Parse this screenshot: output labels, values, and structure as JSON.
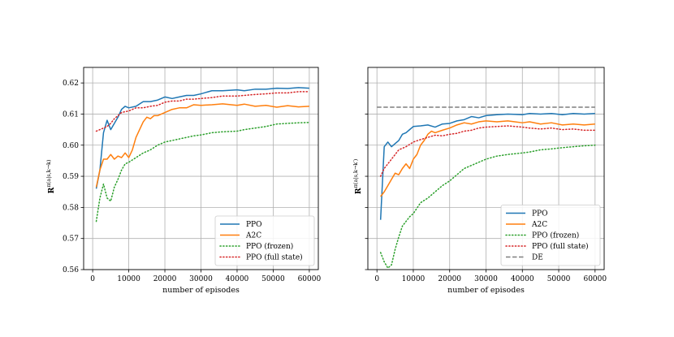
{
  "chart_data": [
    {
      "type": "line",
      "xlabel": "number of episodes",
      "ylabel": "R^{π(a|s, k→k)}",
      "ylabel_main": "R",
      "ylabel_sup": "π(a|s,k→k)",
      "xlim": [
        -2500,
        62500
      ],
      "ylim": [
        0.56,
        0.625
      ],
      "xticks": [
        0,
        10000,
        20000,
        30000,
        40000,
        50000,
        60000
      ],
      "yticks": [
        0.56,
        0.57,
        0.58,
        0.59,
        0.6,
        0.61,
        0.62
      ],
      "xtick_labels": [
        "0",
        "10000",
        "20000",
        "30000",
        "40000",
        "50000",
        "60000"
      ],
      "ytick_labels": [
        "0.56",
        "0.57",
        "0.58",
        "0.59",
        "0.60",
        "0.61",
        "0.62"
      ],
      "grid": true,
      "legend_position": "lower-right",
      "series": [
        {
          "name": "PPO",
          "color": "#1f77b4",
          "style": "solid",
          "x": [
            1000,
            2000,
            3000,
            4000,
            5000,
            6000,
            7000,
            8000,
            9000,
            10000,
            12000,
            14000,
            16000,
            18000,
            20000,
            22000,
            24000,
            26000,
            28000,
            30000,
            33000,
            36000,
            40000,
            42000,
            45000,
            48000,
            51000,
            54000,
            57000,
            60000
          ],
          "y": [
            0.586,
            0.592,
            0.604,
            0.608,
            0.605,
            0.607,
            0.609,
            0.6115,
            0.6125,
            0.612,
            0.6125,
            0.614,
            0.614,
            0.6145,
            0.6155,
            0.615,
            0.6155,
            0.616,
            0.616,
            0.6165,
            0.6175,
            0.6175,
            0.6178,
            0.6175,
            0.618,
            0.618,
            0.6183,
            0.6182,
            0.6185,
            0.6183
          ]
        },
        {
          "name": "A2C",
          "color": "#ff7f0e",
          "style": "solid",
          "x": [
            1000,
            2000,
            3000,
            4000,
            5000,
            6000,
            7000,
            8000,
            9000,
            10000,
            11000,
            12000,
            13000,
            14000,
            15000,
            16000,
            17000,
            18000,
            20000,
            22000,
            24000,
            26000,
            28000,
            30000,
            33000,
            36000,
            40000,
            42000,
            45000,
            48000,
            51000,
            54000,
            57000,
            60000
          ],
          "y": [
            0.5865,
            0.592,
            0.5955,
            0.5955,
            0.597,
            0.5955,
            0.5965,
            0.596,
            0.5975,
            0.596,
            0.5985,
            0.6025,
            0.605,
            0.6075,
            0.609,
            0.6085,
            0.6095,
            0.6095,
            0.6105,
            0.6115,
            0.612,
            0.612,
            0.613,
            0.6128,
            0.613,
            0.6133,
            0.6128,
            0.6132,
            0.6125,
            0.6128,
            0.6122,
            0.6127,
            0.6123,
            0.6125
          ]
        },
        {
          "name": "PPO (frozen)",
          "color": "#2ca02c",
          "style": "dotted",
          "x": [
            1000,
            2000,
            3000,
            4000,
            5000,
            6000,
            7000,
            8000,
            9000,
            10000,
            12000,
            14000,
            16000,
            18000,
            20000,
            22000,
            24000,
            26000,
            28000,
            30000,
            33000,
            36000,
            40000,
            42000,
            45000,
            48000,
            51000,
            54000,
            57000,
            60000
          ],
          "y": [
            0.5755,
            0.583,
            0.5875,
            0.583,
            0.582,
            0.5865,
            0.589,
            0.592,
            0.594,
            0.5945,
            0.596,
            0.5975,
            0.5985,
            0.6,
            0.601,
            0.6015,
            0.602,
            0.6025,
            0.603,
            0.6033,
            0.604,
            0.6043,
            0.6045,
            0.605,
            0.6055,
            0.606,
            0.6068,
            0.607,
            0.6072,
            0.6073
          ]
        },
        {
          "name": "PPO (full state)",
          "color": "#d62728",
          "style": "dotted",
          "x": [
            1000,
            2000,
            3000,
            4000,
            5000,
            6000,
            8000,
            10000,
            12000,
            14000,
            16000,
            18000,
            20000,
            22000,
            24000,
            26000,
            28000,
            30000,
            33000,
            36000,
            40000,
            42000,
            45000,
            48000,
            51000,
            54000,
            57000,
            60000
          ],
          "y": [
            0.6045,
            0.605,
            0.6055,
            0.606,
            0.607,
            0.6085,
            0.6105,
            0.611,
            0.612,
            0.612,
            0.6125,
            0.6128,
            0.6138,
            0.6142,
            0.6142,
            0.6148,
            0.6148,
            0.615,
            0.6153,
            0.6158,
            0.6158,
            0.616,
            0.6163,
            0.6165,
            0.6168,
            0.6168,
            0.6172,
            0.6172
          ]
        }
      ]
    },
    {
      "type": "line",
      "xlabel": "number of episodes",
      "ylabel": "R^{π(a|s, k→k')}",
      "ylabel_main": "R",
      "ylabel_sup": "π(a|s,k→k′)",
      "xlim": [
        -2500,
        62500
      ],
      "ylim": [
        0.56,
        0.625
      ],
      "xticks": [
        0,
        10000,
        20000,
        30000,
        40000,
        50000,
        60000
      ],
      "yticks": [
        0.56,
        0.57,
        0.58,
        0.59,
        0.6,
        0.61,
        0.62
      ],
      "xtick_labels": [
        "0",
        "10000",
        "20000",
        "30000",
        "40000",
        "50000",
        "60000"
      ],
      "grid": true,
      "legend_position": "lower-right",
      "series": [
        {
          "name": "PPO",
          "color": "#1f77b4",
          "style": "solid",
          "x": [
            1000,
            2000,
            3000,
            4000,
            5000,
            6000,
            7000,
            8000,
            9000,
            10000,
            12000,
            14000,
            16000,
            18000,
            20000,
            22000,
            24000,
            26000,
            28000,
            30000,
            33000,
            36000,
            40000,
            42000,
            45000,
            48000,
            51000,
            54000,
            57000,
            60000
          ],
          "y": [
            0.576,
            0.5995,
            0.601,
            0.5995,
            0.6005,
            0.6015,
            0.6035,
            0.604,
            0.605,
            0.606,
            0.6062,
            0.6065,
            0.6058,
            0.6068,
            0.607,
            0.6078,
            0.6082,
            0.6092,
            0.6088,
            0.6095,
            0.6098,
            0.61,
            0.6098,
            0.6102,
            0.61,
            0.6102,
            0.6098,
            0.6102,
            0.61,
            0.6102
          ]
        },
        {
          "name": "A2C",
          "color": "#ff7f0e",
          "style": "solid",
          "x": [
            1000,
            2000,
            3000,
            4000,
            5000,
            6000,
            7000,
            8000,
            9000,
            10000,
            11000,
            12000,
            13000,
            14000,
            15000,
            16000,
            18000,
            20000,
            22000,
            24000,
            26000,
            28000,
            30000,
            33000,
            36000,
            40000,
            42000,
            45000,
            48000,
            51000,
            54000,
            57000,
            60000
          ],
          "y": [
            0.5835,
            0.585,
            0.587,
            0.589,
            0.591,
            0.5905,
            0.5925,
            0.594,
            0.5925,
            0.5955,
            0.597,
            0.6,
            0.6015,
            0.6035,
            0.6045,
            0.604,
            0.6048,
            0.6055,
            0.6065,
            0.6072,
            0.6068,
            0.6075,
            0.6078,
            0.6075,
            0.6078,
            0.6072,
            0.6075,
            0.6068,
            0.6072,
            0.6065,
            0.6068,
            0.6065,
            0.6068
          ]
        },
        {
          "name": "PPO (frozen)",
          "color": "#2ca02c",
          "style": "dotted",
          "x": [
            1000,
            2000,
            3000,
            4000,
            5000,
            6000,
            7000,
            8000,
            9000,
            10000,
            12000,
            14000,
            16000,
            18000,
            20000,
            22000,
            24000,
            26000,
            28000,
            30000,
            33000,
            36000,
            40000,
            42000,
            45000,
            48000,
            51000,
            54000,
            57000,
            60000
          ],
          "y": [
            0.5655,
            0.5625,
            0.5605,
            0.5615,
            0.5665,
            0.5705,
            0.574,
            0.5755,
            0.577,
            0.578,
            0.5815,
            0.583,
            0.585,
            0.587,
            0.5885,
            0.5905,
            0.5925,
            0.5935,
            0.5945,
            0.5955,
            0.5965,
            0.597,
            0.5975,
            0.5978,
            0.5985,
            0.5988,
            0.5992,
            0.5995,
            0.5998,
            0.6
          ]
        },
        {
          "name": "PPO (full state)",
          "color": "#d62728",
          "style": "dotted",
          "x": [
            1000,
            2000,
            3000,
            4000,
            5000,
            6000,
            8000,
            10000,
            12000,
            14000,
            16000,
            18000,
            20000,
            22000,
            24000,
            26000,
            28000,
            30000,
            33000,
            36000,
            40000,
            42000,
            45000,
            48000,
            51000,
            54000,
            57000,
            60000
          ],
          "y": [
            0.59,
            0.5925,
            0.594,
            0.5955,
            0.597,
            0.5985,
            0.5995,
            0.601,
            0.6018,
            0.6025,
            0.6032,
            0.603,
            0.6035,
            0.6038,
            0.6045,
            0.6048,
            0.6055,
            0.6058,
            0.606,
            0.6062,
            0.6058,
            0.6055,
            0.6052,
            0.6055,
            0.605,
            0.6052,
            0.6048,
            0.6048
          ]
        },
        {
          "name": "DE",
          "color": "#7f7f7f",
          "style": "dashed",
          "x": [
            0,
            60000
          ],
          "y": [
            0.6122,
            0.6122
          ]
        }
      ]
    }
  ]
}
